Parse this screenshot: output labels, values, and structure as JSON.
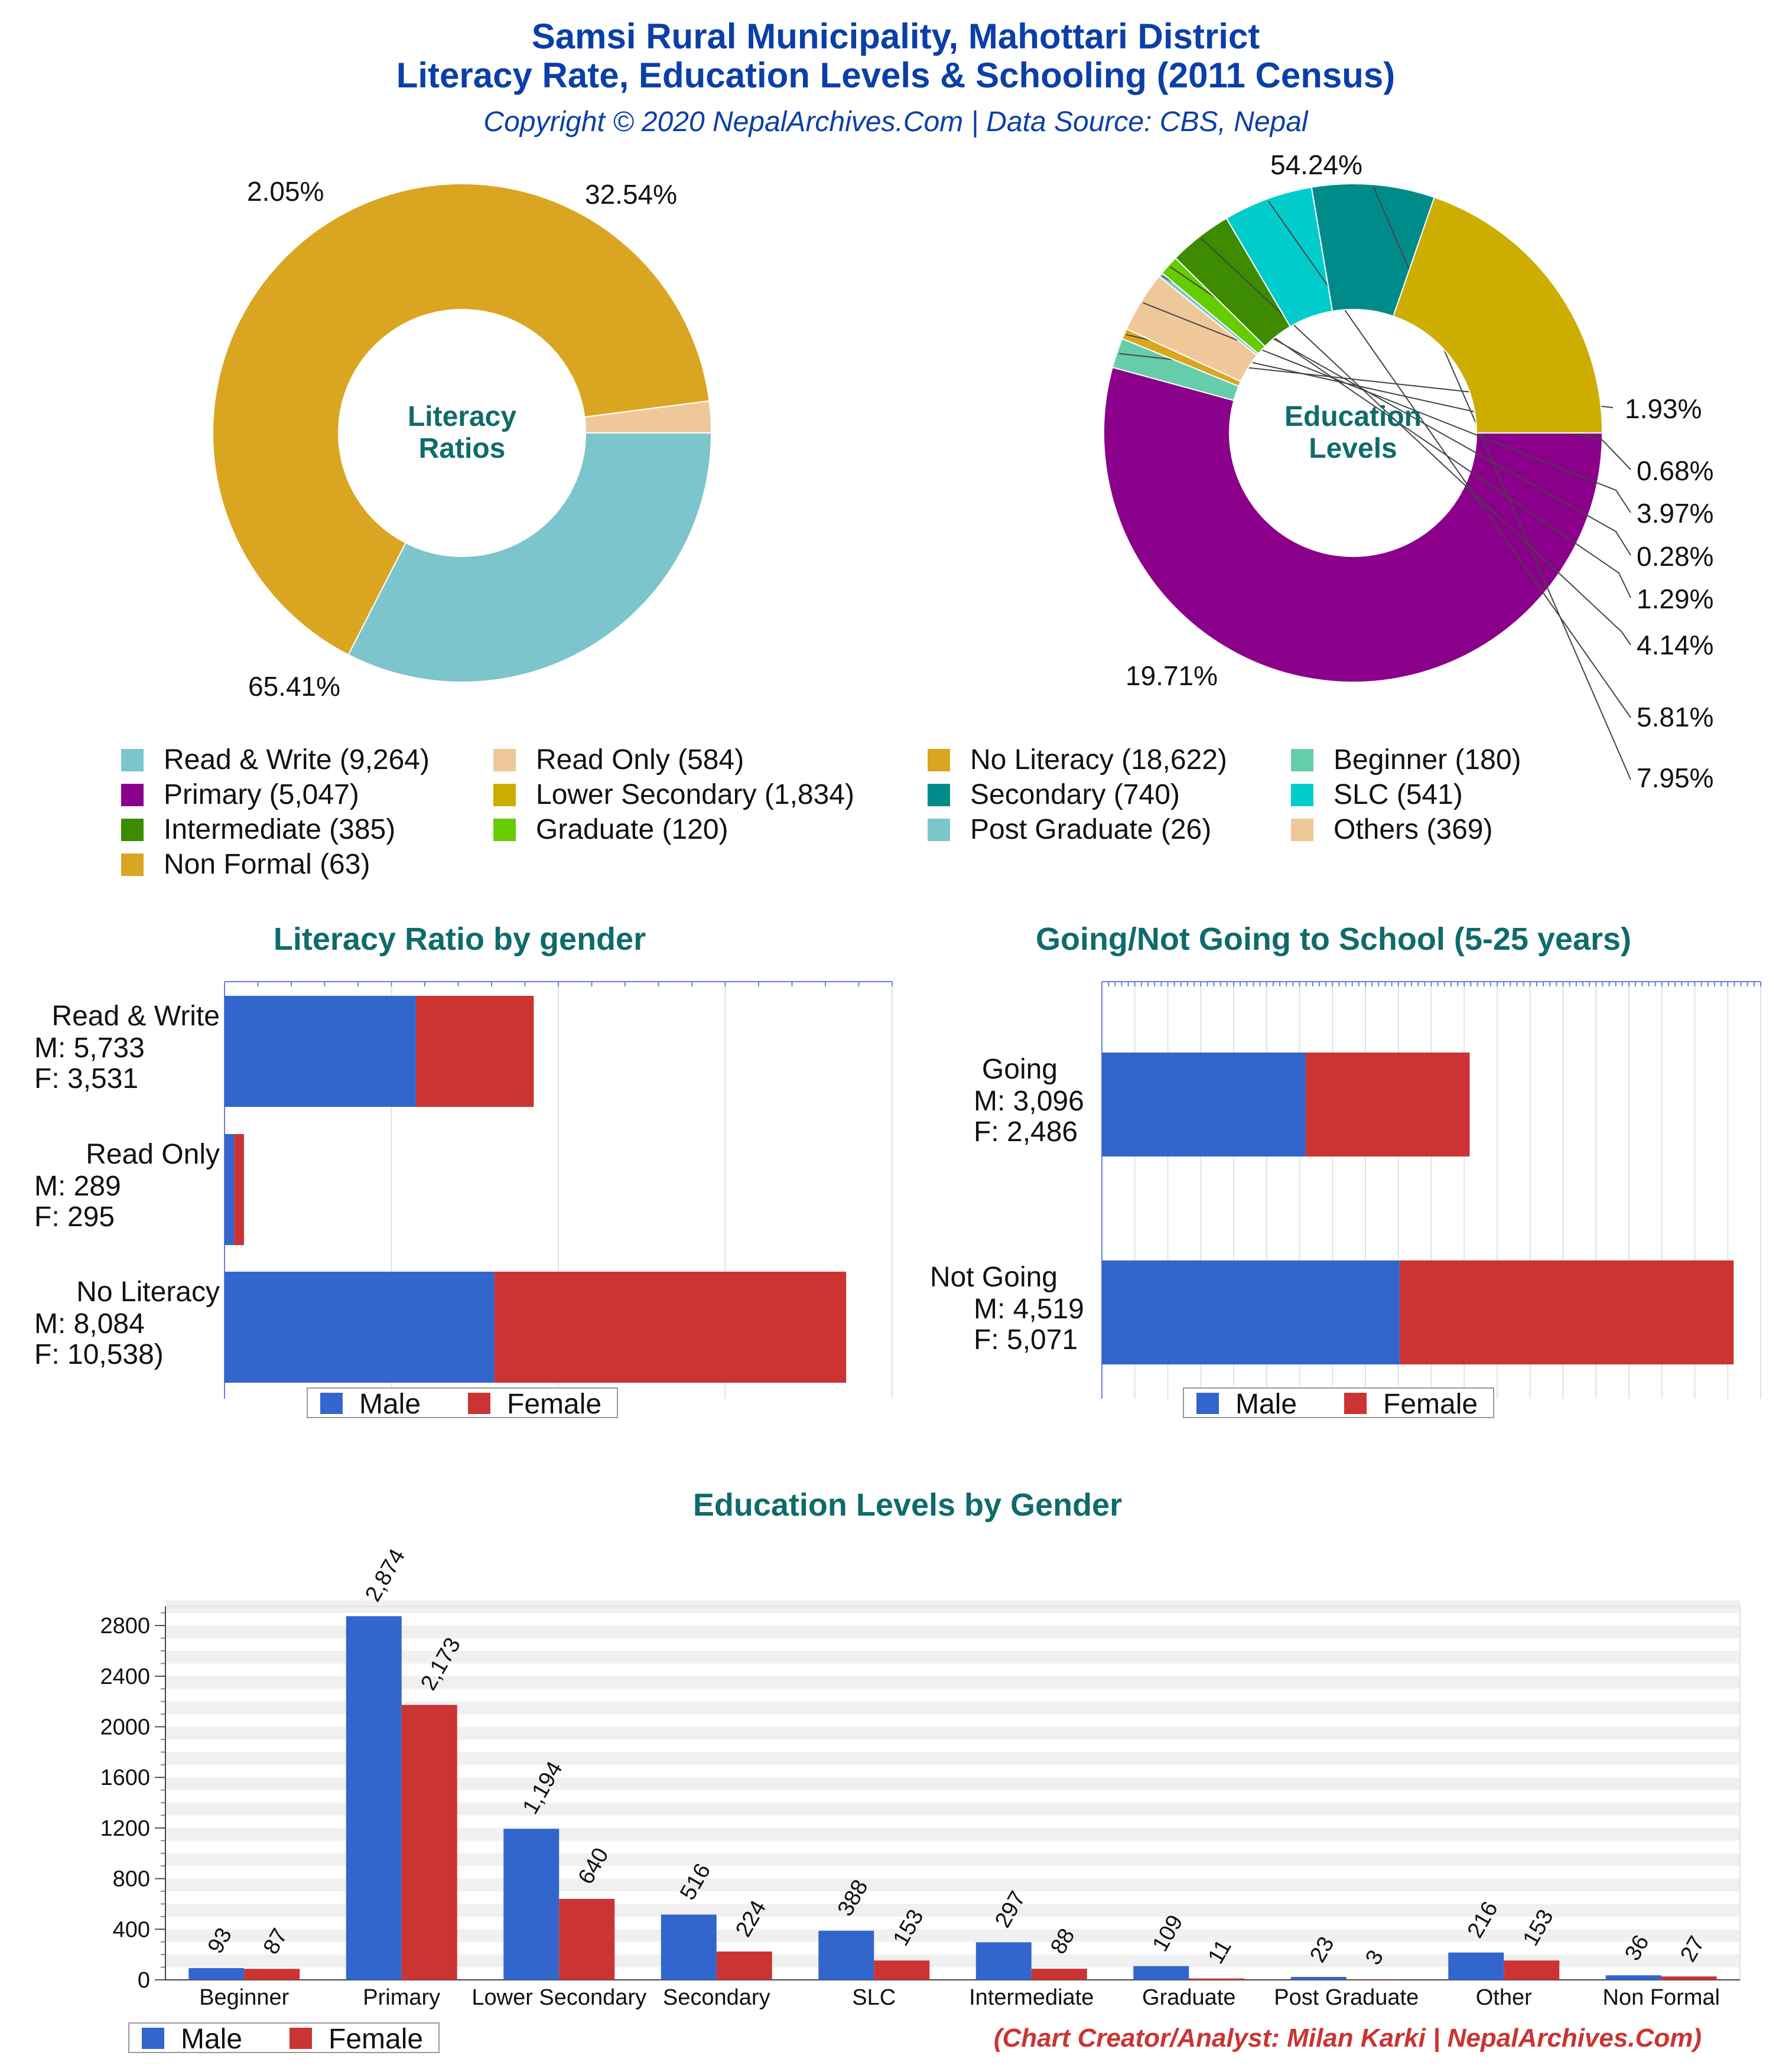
{
  "header": {
    "title_line1": "Samsi Rural Municipality, Mahottari District",
    "title_line2": "Literacy Rate, Education Levels & Schooling (2011 Census)",
    "subtitle": "Copyright © 2020 NepalArchives.Com | Data Source: CBS, Nepal"
  },
  "footer": {
    "credit": "(Chart Creator/Analyst: Milan Karki | NepalArchives.Com)"
  },
  "colors": {
    "title": "#0b3fa8",
    "section_title": "#0f6b6b",
    "male": "#3366cc",
    "female": "#cc3333",
    "credit": "#cc3333",
    "grid": "#dde0f0",
    "axis": "#6b7be0"
  },
  "chart_data": [
    {
      "id": "literacy_ratios",
      "type": "pie",
      "center_label_line1": "Literacy",
      "center_label_line2": "Ratios",
      "slices": [
        {
          "name": "Read & Write",
          "value": 9264,
          "label": "32.54%",
          "color": "#7cc5cc"
        },
        {
          "name": "No Literacy",
          "value": 18622,
          "label": "65.41%",
          "color": "#daa520"
        },
        {
          "name": "Read Only",
          "value": 584,
          "label": "2.05%",
          "color": "#efc89a"
        }
      ]
    },
    {
      "id": "education_levels",
      "type": "pie",
      "center_label_line1": "Education",
      "center_label_line2": "Levels",
      "slices": [
        {
          "name": "Primary",
          "value": 5047,
          "label": "54.24%",
          "color": "#8b008b"
        },
        {
          "name": "Beginner",
          "value": 180,
          "label": "1.93%",
          "color": "#66cdaa"
        },
        {
          "name": "Non Formal",
          "value": 63,
          "label": "0.68%",
          "color": "#daa520"
        },
        {
          "name": "Others",
          "value": 369,
          "label": "3.97%",
          "color": "#efc89a"
        },
        {
          "name": "Post Graduate",
          "value": 26,
          "label": "0.28%",
          "color": "#7cc5cc"
        },
        {
          "name": "Graduate",
          "value": 120,
          "label": "1.29%",
          "color": "#66cc00"
        },
        {
          "name": "Intermediate",
          "value": 385,
          "label": "4.14%",
          "color": "#3d8b00"
        },
        {
          "name": "SLC",
          "value": 541,
          "label": "5.81%",
          "color": "#00cccc"
        },
        {
          "name": "Secondary",
          "value": 740,
          "label": "7.95%",
          "color": "#008b8b"
        },
        {
          "name": "Lower Secondary",
          "value": 1834,
          "label": "19.71%",
          "color": "#ccad00"
        }
      ]
    },
    {
      "id": "literacy_by_gender",
      "type": "bar",
      "orientation": "horizontal-stacked",
      "title": "Literacy Ratio by gender",
      "xlim": [
        0,
        20000
      ],
      "categories": [
        {
          "name": "Read & Write",
          "m_label": "M: 5,733",
          "f_label": "F: 3,531"
        },
        {
          "name": "Read Only",
          "m_label": "M: 289",
          "f_label": "F: 295"
        },
        {
          "name": "No Literacy",
          "m_label": "M: 8,084",
          "f_label": "F: 10,538)"
        }
      ],
      "series": [
        {
          "name": "Male",
          "values": [
            5733,
            289,
            8084
          ]
        },
        {
          "name": "Female",
          "values": [
            3531,
            295,
            10538
          ]
        }
      ],
      "legend": [
        "Male",
        "Female"
      ]
    },
    {
      "id": "school_attendance",
      "type": "bar",
      "orientation": "horizontal-stacked",
      "title": "Going/Not Going to School (5-25 years)",
      "xlim": [
        0,
        10000
      ],
      "categories": [
        {
          "name": "Going",
          "m_label": "M: 3,096",
          "f_label": "F: 2,486"
        },
        {
          "name": "Not Going",
          "m_label": "M: 4,519",
          "f_label": "F: 5,071"
        }
      ],
      "series": [
        {
          "name": "Male",
          "values": [
            3096,
            4519
          ]
        },
        {
          "name": "Female",
          "values": [
            2486,
            5071
          ]
        }
      ],
      "legend": [
        "Male",
        "Female"
      ]
    },
    {
      "id": "education_by_gender",
      "type": "bar",
      "title": "Education Levels by Gender",
      "ylim": [
        0,
        2950
      ],
      "yticks": [
        0,
        400,
        800,
        1200,
        1600,
        2000,
        2400,
        2800
      ],
      "categories": [
        "Beginner",
        "Primary",
        "Lower Secondary",
        "Secondary",
        "SLC",
        "Intermediate",
        "Graduate",
        "Post Graduate",
        "Other",
        "Non Formal"
      ],
      "series": [
        {
          "name": "Male",
          "values": [
            93,
            2874,
            1194,
            516,
            388,
            297,
            109,
            23,
            216,
            36
          ],
          "labels": [
            "93",
            "2,874",
            "1,194",
            "516",
            "388",
            "297",
            "109",
            "23",
            "216",
            "36"
          ]
        },
        {
          "name": "Female",
          "values": [
            87,
            2173,
            640,
            224,
            153,
            88,
            11,
            3,
            153,
            27
          ],
          "labels": [
            "87",
            "2,173",
            "640",
            "224",
            "153",
            "88",
            "11",
            "3",
            "153",
            "27"
          ]
        }
      ],
      "legend": [
        "Male",
        "Female"
      ]
    }
  ],
  "pie_legend": {
    "columns": [
      [
        {
          "text": "Read & Write (9,264)",
          "color": "#7cc5cc"
        },
        {
          "text": "Primary (5,047)",
          "color": "#8b008b"
        },
        {
          "text": "Intermediate (385)",
          "color": "#3d8b00"
        },
        {
          "text": "Non Formal (63)",
          "color": "#daa520"
        }
      ],
      [
        {
          "text": "Read Only (584)",
          "color": "#efc89a"
        },
        {
          "text": "Lower Secondary (1,834)",
          "color": "#ccad00"
        },
        {
          "text": "Graduate (120)",
          "color": "#66cc00"
        }
      ],
      [
        {
          "text": "No Literacy (18,622)",
          "color": "#daa520"
        },
        {
          "text": "Secondary (740)",
          "color": "#008b8b"
        },
        {
          "text": "Post Graduate (26)",
          "color": "#7cc5cc"
        }
      ],
      [
        {
          "text": "Beginner (180)",
          "color": "#66cdaa"
        },
        {
          "text": "SLC (541)",
          "color": "#00cccc"
        },
        {
          "text": "Others (369)",
          "color": "#efc89a"
        }
      ]
    ]
  }
}
